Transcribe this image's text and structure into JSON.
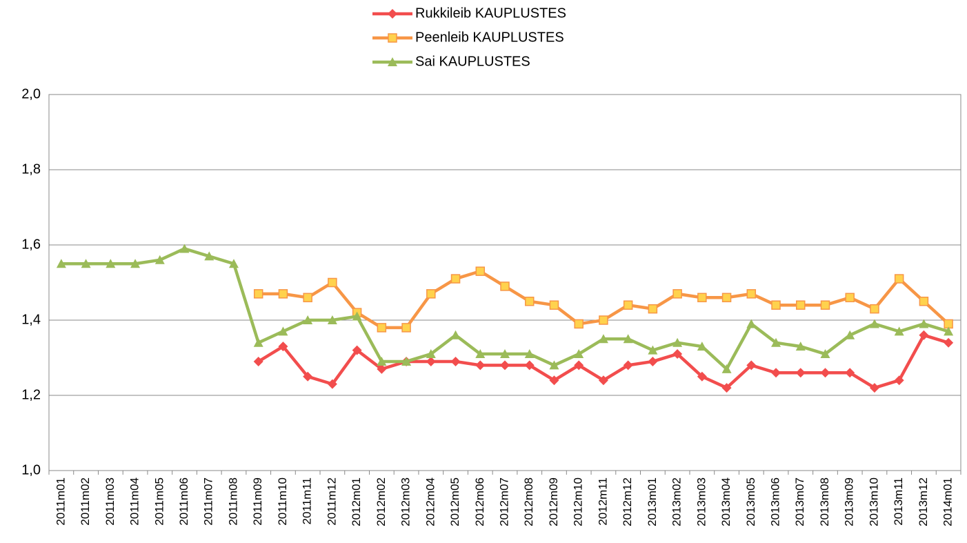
{
  "chart_data": {
    "type": "line",
    "categories": [
      "2011m01",
      "2011m02",
      "2011m03",
      "2011m04",
      "2011m05",
      "2011m06",
      "2011m07",
      "2011m08",
      "2011m09",
      "2011m10",
      "2011m11",
      "2011m12",
      "2012m01",
      "2012m02",
      "2012m03",
      "2012m04",
      "2012m05",
      "2012m06",
      "2012m07",
      "2012m08",
      "2012m09",
      "2012m10",
      "2012m11",
      "2012m12",
      "2013m01",
      "2013m02",
      "2013m03",
      "2013m04",
      "2013m05",
      "2013m06",
      "2013m07",
      "2013m08",
      "2013m09",
      "2013m10",
      "2013m11",
      "2013m12",
      "2014m01"
    ],
    "series": [
      {
        "name": "Rukkileib KAUPLUSTES",
        "color": "#f24d4d",
        "marker": "diamond",
        "values": [
          null,
          null,
          null,
          null,
          null,
          null,
          null,
          null,
          1.29,
          1.33,
          1.25,
          1.23,
          1.32,
          1.27,
          1.29,
          1.29,
          1.29,
          1.28,
          1.28,
          1.28,
          1.24,
          1.28,
          1.24,
          1.28,
          1.29,
          1.31,
          1.25,
          1.22,
          1.28,
          1.26,
          1.26,
          1.26,
          1.26,
          1.22,
          1.24,
          1.36,
          1.34
        ]
      },
      {
        "name": "Peenleib KAUPLUSTES",
        "color": "#f79646",
        "marker": "square",
        "values": [
          null,
          null,
          null,
          null,
          null,
          null,
          null,
          null,
          1.47,
          1.47,
          1.46,
          1.5,
          1.42,
          1.38,
          1.38,
          1.47,
          1.51,
          1.53,
          1.49,
          1.45,
          1.44,
          1.39,
          1.4,
          1.44,
          1.43,
          1.47,
          1.46,
          1.46,
          1.47,
          1.44,
          1.44,
          1.44,
          1.46,
          1.43,
          1.51,
          1.45,
          1.39
        ]
      },
      {
        "name": "Sai KAUPLUSTES",
        "color": "#9bbb59",
        "marker": "triangle",
        "values": [
          1.55,
          1.55,
          1.55,
          1.55,
          1.56,
          1.59,
          1.57,
          1.55,
          1.34,
          1.37,
          1.4,
          1.4,
          1.41,
          1.29,
          1.29,
          1.31,
          1.36,
          1.31,
          1.31,
          1.31,
          1.28,
          1.31,
          1.35,
          1.35,
          1.32,
          1.34,
          1.33,
          1.27,
          1.39,
          1.34,
          1.33,
          1.31,
          1.36,
          1.39,
          1.37,
          1.39,
          1.37
        ]
      }
    ],
    "ylim": [
      1.0,
      2.0
    ],
    "yticks": [
      {
        "value": 1.0,
        "label": "1,0"
      },
      {
        "value": 1.2,
        "label": "1,2"
      },
      {
        "value": 1.4,
        "label": "1,4"
      },
      {
        "value": 1.6,
        "label": "1,6"
      },
      {
        "value": 1.8,
        "label": "1,8"
      },
      {
        "value": 2.0,
        "label": "2,0"
      }
    ],
    "grid": true,
    "legend": "top"
  }
}
